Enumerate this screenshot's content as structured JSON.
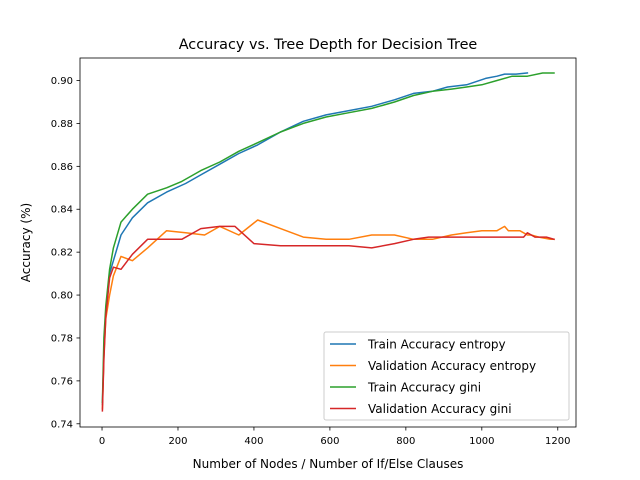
{
  "chart_data": {
    "type": "line",
    "title": "Accuracy vs. Tree Depth for Decision Tree",
    "xlabel": "Number of Nodes / Number of If/Else Clauses",
    "ylabel": "Accuracy (%)",
    "xlim": [
      -58,
      1248
    ],
    "ylim": [
      0.7385,
      0.9105
    ],
    "xticks": [
      0,
      200,
      400,
      600,
      800,
      1000,
      1200
    ],
    "xtick_labels": [
      "0",
      "200",
      "400",
      "600",
      "800",
      "1000",
      "1200"
    ],
    "yticks": [
      0.74,
      0.76,
      0.78,
      0.8,
      0.82,
      0.84,
      0.86,
      0.88,
      0.9
    ],
    "ytick_labels": [
      "0.74",
      "0.76",
      "0.78",
      "0.80",
      "0.82",
      "0.84",
      "0.86",
      "0.88",
      "0.90"
    ],
    "grid": false,
    "legend_position": "lower-right",
    "series": [
      {
        "name": "Train Accuracy entropy",
        "color": "#1f77b4",
        "x": [
          1,
          5,
          10,
          20,
          30,
          50,
          80,
          120,
          170,
          220,
          260,
          310,
          360,
          410,
          470,
          530,
          590,
          650,
          710,
          770,
          820,
          870,
          910,
          960,
          1010,
          1040,
          1060,
          1090,
          1120
        ],
        "y": [
          0.749,
          0.773,
          0.792,
          0.81,
          0.816,
          0.828,
          0.836,
          0.843,
          0.848,
          0.852,
          0.856,
          0.861,
          0.866,
          0.87,
          0.876,
          0.881,
          0.884,
          0.886,
          0.888,
          0.891,
          0.894,
          0.895,
          0.897,
          0.898,
          0.901,
          0.902,
          0.903,
          0.903,
          0.9035
        ]
      },
      {
        "name": "Validation Accuracy entropy",
        "color": "#ff7f0e",
        "x": [
          1,
          5,
          10,
          20,
          30,
          50,
          80,
          120,
          170,
          220,
          270,
          310,
          360,
          410,
          470,
          530,
          590,
          650,
          710,
          770,
          820,
          870,
          920,
          960,
          1000,
          1040,
          1060,
          1070,
          1100,
          1110,
          1120,
          1130,
          1150,
          1180,
          1190
        ],
        "y": [
          0.747,
          0.772,
          0.789,
          0.8,
          0.809,
          0.818,
          0.816,
          0.822,
          0.83,
          0.829,
          0.828,
          0.832,
          0.828,
          0.835,
          0.831,
          0.827,
          0.826,
          0.826,
          0.828,
          0.828,
          0.826,
          0.826,
          0.828,
          0.829,
          0.83,
          0.83,
          0.832,
          0.83,
          0.83,
          0.829,
          0.828,
          0.828,
          0.827,
          0.826,
          0.826
        ]
      },
      {
        "name": "Train Accuracy gini",
        "color": "#2ca02c",
        "x": [
          1,
          5,
          10,
          20,
          30,
          50,
          80,
          120,
          170,
          210,
          260,
          310,
          360,
          410,
          470,
          530,
          590,
          650,
          710,
          770,
          820,
          870,
          920,
          960,
          1000,
          1040,
          1080,
          1120,
          1160,
          1190
        ],
        "y": [
          0.75,
          0.78,
          0.795,
          0.812,
          0.822,
          0.834,
          0.84,
          0.847,
          0.85,
          0.853,
          0.858,
          0.862,
          0.867,
          0.871,
          0.876,
          0.88,
          0.883,
          0.885,
          0.887,
          0.89,
          0.893,
          0.895,
          0.896,
          0.897,
          0.898,
          0.9,
          0.902,
          0.902,
          0.9035,
          0.9035
        ]
      },
      {
        "name": "Validation Accuracy gini",
        "color": "#d62728",
        "x": [
          1,
          5,
          10,
          20,
          30,
          50,
          80,
          120,
          170,
          210,
          260,
          310,
          350,
          400,
          470,
          530,
          590,
          650,
          710,
          770,
          820,
          860,
          910,
          960,
          1000,
          1040,
          1080,
          1110,
          1120,
          1140,
          1170,
          1190
        ],
        "y": [
          0.746,
          0.77,
          0.79,
          0.808,
          0.813,
          0.812,
          0.819,
          0.826,
          0.826,
          0.826,
          0.831,
          0.832,
          0.832,
          0.824,
          0.823,
          0.823,
          0.823,
          0.823,
          0.822,
          0.824,
          0.826,
          0.827,
          0.827,
          0.827,
          0.827,
          0.827,
          0.827,
          0.827,
          0.829,
          0.827,
          0.827,
          0.826
        ]
      }
    ]
  }
}
